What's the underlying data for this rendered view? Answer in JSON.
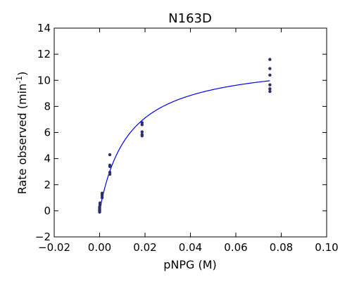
{
  "chart_data": {
    "type": "scatter",
    "title": "N163D",
    "xlabel": "pNPG (M)",
    "ylabel_text": "Rate observed (min",
    "ylabel_sup": "-1",
    "ylabel_close": ")",
    "xlim": [
      -0.02,
      0.1
    ],
    "ylim": [
      -2,
      14
    ],
    "xticks": [
      -0.02,
      0.0,
      0.02,
      0.04,
      0.06,
      0.08,
      0.1
    ],
    "xtick_labels": [
      "−0.02",
      "0.00",
      "0.02",
      "0.04",
      "0.06",
      "0.08",
      "0.10"
    ],
    "yticks": [
      -2,
      0,
      2,
      4,
      6,
      8,
      10,
      12,
      14
    ],
    "ytick_labels": [
      "−2",
      "0",
      "2",
      "4",
      "6",
      "8",
      "10",
      "12",
      "14"
    ],
    "grid": false,
    "colors": {
      "points": "#2e2e6e",
      "fit_line": "#0000ff",
      "axes": "#000000"
    },
    "points": [
      {
        "x": 0.0,
        "y": -0.1
      },
      {
        "x": 0.0,
        "y": 0.0
      },
      {
        "x": 0.0,
        "y": 0.05
      },
      {
        "x": 0.0,
        "y": 0.1
      },
      {
        "x": 0.0,
        "y": 0.2
      },
      {
        "x": 0.0,
        "y": 0.3
      },
      {
        "x": 0.0002,
        "y": 0.45
      },
      {
        "x": 0.0002,
        "y": 0.55
      },
      {
        "x": 0.0002,
        "y": 0.6
      },
      {
        "x": 0.0011,
        "y": 1.0
      },
      {
        "x": 0.0011,
        "y": 1.15
      },
      {
        "x": 0.0011,
        "y": 1.25
      },
      {
        "x": 0.0011,
        "y": 1.35
      },
      {
        "x": 0.0045,
        "y": 2.8
      },
      {
        "x": 0.0045,
        "y": 2.95
      },
      {
        "x": 0.0045,
        "y": 3.4
      },
      {
        "x": 0.0045,
        "y": 3.5
      },
      {
        "x": 0.0045,
        "y": 4.3
      },
      {
        "x": 0.0187,
        "y": 5.75
      },
      {
        "x": 0.0187,
        "y": 5.85
      },
      {
        "x": 0.0187,
        "y": 6.05
      },
      {
        "x": 0.0187,
        "y": 6.6
      },
      {
        "x": 0.0187,
        "y": 6.75
      },
      {
        "x": 0.075,
        "y": 9.15
      },
      {
        "x": 0.075,
        "y": 9.35
      },
      {
        "x": 0.075,
        "y": 9.65
      },
      {
        "x": 0.075,
        "y": 10.4
      },
      {
        "x": 0.075,
        "y": 10.9
      },
      {
        "x": 0.075,
        "y": 11.6
      }
    ],
    "fit": {
      "model": "Michaelis-Menten",
      "vmax": 11.67,
      "km": 0.0128,
      "x_range": [
        0.0,
        0.075
      ]
    }
  }
}
